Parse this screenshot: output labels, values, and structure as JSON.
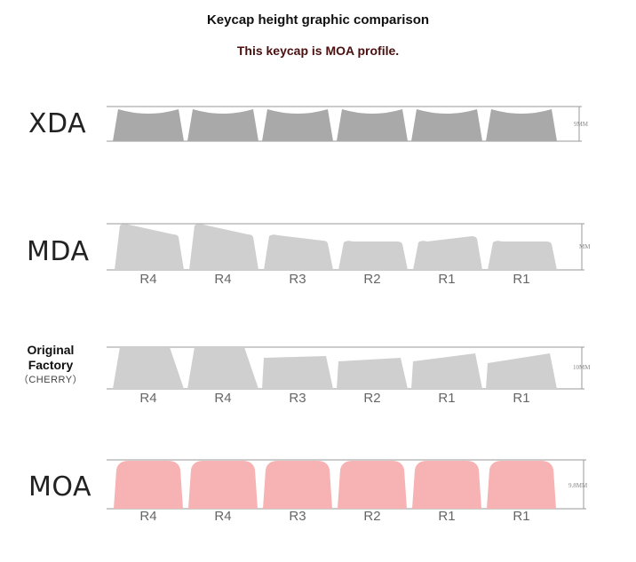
{
  "header": {
    "title": "Keycap height graphic comparison",
    "subtitle": "This keycap is MOA profile."
  },
  "rows": [
    {
      "name": "XDA",
      "height_label": "9MM",
      "row_labels": []
    },
    {
      "name": "MDA",
      "height_label": "MM",
      "row_labels": [
        "R4",
        "R4",
        "R3",
        "R2",
        "R1",
        "R1"
      ]
    },
    {
      "name_lines": [
        "Original",
        "Factory",
        "（CHERRY）"
      ],
      "height_label": "10MM",
      "row_labels": [
        "R4",
        "R4",
        "R3",
        "R2",
        "R1",
        "R1"
      ]
    },
    {
      "name": "MOA",
      "height_label": "9.8MM",
      "row_labels": [
        "R4",
        "R4",
        "R3",
        "R2",
        "R1",
        "R1"
      ]
    }
  ],
  "colors": {
    "xda_fill": "#a9a9a9",
    "gray_fill": "#cfcfcf",
    "moa_fill": "#f7b3b3",
    "line": "#9a9a9a"
  }
}
